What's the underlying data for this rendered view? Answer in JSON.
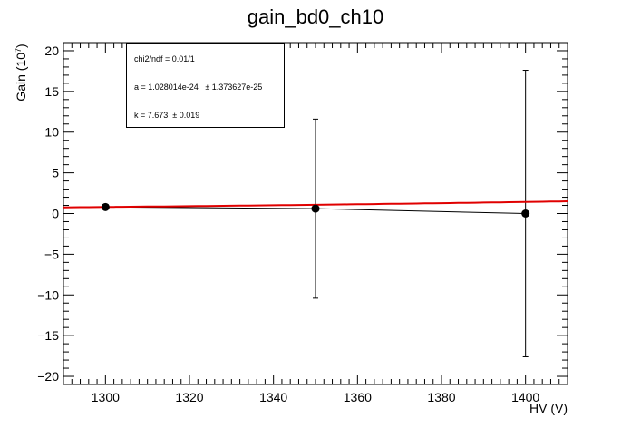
{
  "chart_data": {
    "type": "scatter",
    "title": "gain_bd0_ch10",
    "xlabel": "HV (V)",
    "ylabel": "Gain (10^7)",
    "xlim": [
      1290,
      1410
    ],
    "ylim": [
      -21,
      21
    ],
    "x_ticks": [
      1300,
      1320,
      1340,
      1360,
      1380,
      1400
    ],
    "y_ticks": [
      -20,
      -15,
      -10,
      -5,
      0,
      5,
      10,
      15,
      20
    ],
    "grid": false,
    "series": [
      {
        "x": [
          1300,
          1350,
          1400
        ],
        "y": [
          0.8,
          0.6,
          0.0
        ],
        "yerr": [
          0.0,
          11.0,
          17.6
        ],
        "color": "#000000"
      }
    ],
    "fit": {
      "color": "#e00000",
      "model": "a*x^k",
      "a": 1.028014e-24,
      "k": 7.673
    },
    "stats_box": {
      "chi2": "chi2/ndf = 0.01/1",
      "a": "a = 1.028014e-24   ± 1.373627e-25",
      "k": "k = 7.673  ± 0.019"
    }
  }
}
